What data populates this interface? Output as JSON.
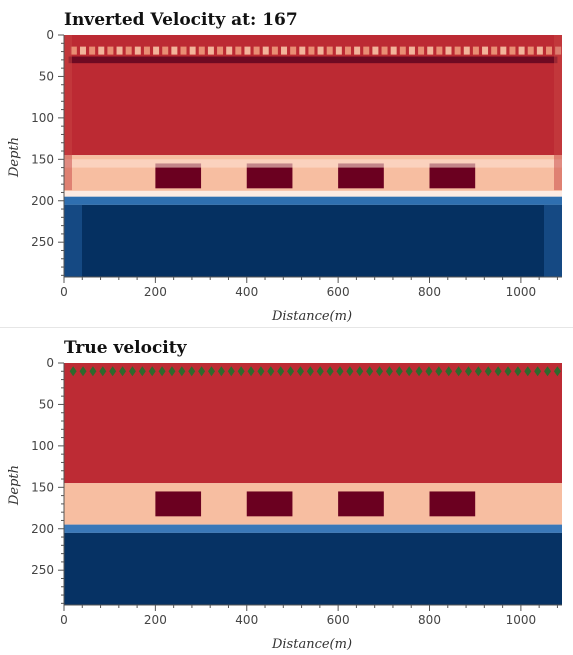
{
  "chart_data": [
    {
      "type": "heatmap",
      "title": "Inverted Velocity at: 167",
      "xlabel": "Distance(m)",
      "ylabel": "Depth",
      "xlim": [
        0,
        1090
      ],
      "ylim": [
        292,
        0
      ],
      "xticks": [
        0,
        200,
        400,
        600,
        800,
        1000
      ],
      "yticks": [
        0,
        50,
        100,
        150,
        200,
        250
      ],
      "colormap": "RdBu",
      "colors": {
        "high": "#67001f",
        "mid_high": "#b2182b",
        "light": "#f4a582",
        "pale": "#fddbc7",
        "mid_low": "#4393c3",
        "low": "#053061"
      },
      "layers": [
        {
          "depth_range": [
            0,
            145
          ],
          "value": "high",
          "color": "#bc2a33"
        },
        {
          "depth_range": [
            145,
            195
          ],
          "value": "light",
          "color": "#f7bea1"
        },
        {
          "depth_range": [
            195,
            205
          ],
          "value": "mid_low",
          "color": "#2f6fb0"
        },
        {
          "depth_range": [
            205,
            292
          ],
          "value": "low",
          "color": "#053061"
        }
      ],
      "anomalies": [
        {
          "x_range": [
            200,
            300
          ],
          "depth_range": [
            155,
            185
          ],
          "color": "#6b0020"
        },
        {
          "x_range": [
            400,
            500
          ],
          "depth_range": [
            155,
            185
          ],
          "color": "#6b0020"
        },
        {
          "x_range": [
            600,
            700
          ],
          "depth_range": [
            155,
            185
          ],
          "color": "#6b0020"
        },
        {
          "x_range": [
            800,
            900
          ],
          "depth_range": [
            155,
            185
          ],
          "color": "#6b0020"
        }
      ],
      "receivers": []
    },
    {
      "type": "heatmap",
      "title": "True velocity",
      "xlabel": "Distance(m)",
      "ylabel": "Depth",
      "xlim": [
        0,
        1090
      ],
      "ylim": [
        292,
        0
      ],
      "xticks": [
        0,
        200,
        400,
        600,
        800,
        1000
      ],
      "yticks": [
        0,
        50,
        100,
        150,
        200,
        250
      ],
      "colormap": "RdBu",
      "layers": [
        {
          "depth_range": [
            0,
            145
          ],
          "value": "high",
          "color": "#bd2b34"
        },
        {
          "depth_range": [
            145,
            195
          ],
          "value": "light",
          "color": "#f7bea1"
        },
        {
          "depth_range": [
            195,
            205
          ],
          "value": "mid_low",
          "color": "#3a78b8"
        },
        {
          "depth_range": [
            205,
            292
          ],
          "value": "low",
          "color": "#063264"
        }
      ],
      "anomalies": [
        {
          "x_range": [
            200,
            300
          ],
          "depth_range": [
            155,
            185
          ],
          "color": "#6b0020"
        },
        {
          "x_range": [
            400,
            500
          ],
          "depth_range": [
            155,
            185
          ],
          "color": "#6b0020"
        },
        {
          "x_range": [
            600,
            700
          ],
          "depth_range": [
            155,
            185
          ],
          "color": "#6b0020"
        },
        {
          "x_range": [
            800,
            900
          ],
          "depth_range": [
            155,
            185
          ],
          "color": "#6b0020"
        }
      ],
      "receivers": {
        "depth": 10,
        "x_start": 20,
        "x_end": 1080,
        "count": 50,
        "color": "#2d6a2d"
      }
    }
  ]
}
